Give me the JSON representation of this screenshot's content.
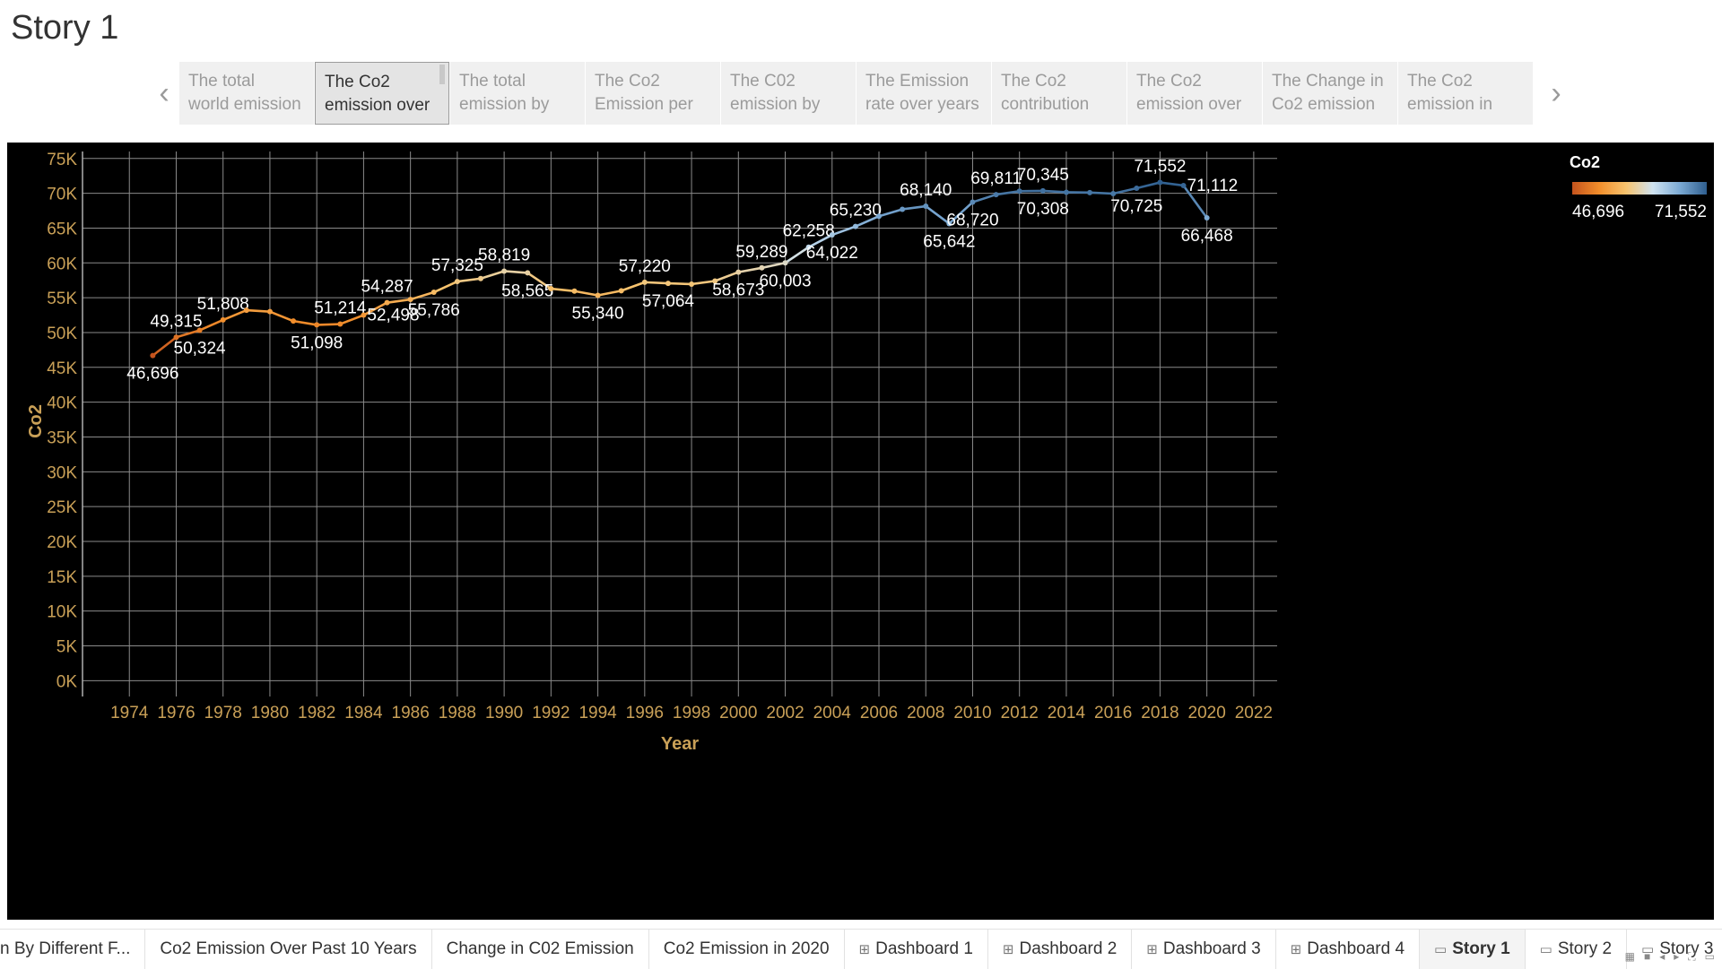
{
  "story": {
    "title": "Story 1",
    "points": [
      "The total\nworld emission",
      "The  Co2\nemission over",
      "The total\nemission by",
      "The Co2\nEmission per",
      "The C02\nemission by",
      "The Emission\nrate over years",
      "The Co2\ncontribution",
      "The Co2\nemission over",
      "The Change in\nCo2 emission",
      "The Co2\nemission in"
    ],
    "active_point": 1,
    "prev_label": "‹",
    "next_label": "›"
  },
  "legend": {
    "title": "Co2",
    "min_label": "46,696",
    "max_label": "71,552",
    "colors": [
      "#c4531d",
      "#f28e2b",
      "#f7c36e",
      "#cfe3f1",
      "#7ba9d3",
      "#2f5f8f"
    ]
  },
  "chart_data": {
    "type": "line",
    "title": "",
    "xlabel": "Year",
    "ylabel": "Co2",
    "xlim": [
      1972,
      2023
    ],
    "ylim": [
      -1500,
      76000
    ],
    "x_ticks": [
      "1974",
      "1976",
      "1978",
      "1980",
      "1982",
      "1984",
      "1986",
      "1988",
      "1990",
      "1992",
      "1994",
      "1996",
      "1998",
      "2000",
      "2002",
      "2004",
      "2006",
      "2008",
      "2010",
      "2012",
      "2014",
      "2016",
      "2018",
      "2020",
      "2022"
    ],
    "y_ticks": [
      {
        "v": 75000,
        "label": "75K"
      },
      {
        "v": 70000,
        "label": "70K"
      },
      {
        "v": 65000,
        "label": "65K"
      },
      {
        "v": 60000,
        "label": "60K"
      },
      {
        "v": 55000,
        "label": "55K"
      },
      {
        "v": 50000,
        "label": "50K"
      },
      {
        "v": 45000,
        "label": "45K"
      },
      {
        "v": 40000,
        "label": "40K"
      },
      {
        "v": 35000,
        "label": "35K"
      },
      {
        "v": 30000,
        "label": "30K"
      },
      {
        "v": 25000,
        "label": "25K"
      },
      {
        "v": 20000,
        "label": "20K"
      },
      {
        "v": 15000,
        "label": "15K"
      },
      {
        "v": 10000,
        "label": "10K"
      },
      {
        "v": 5000,
        "label": "5K"
      },
      {
        "v": 0,
        "label": "0K"
      }
    ],
    "grid": true,
    "legend_position": "top-right",
    "points": [
      {
        "x": 1975,
        "y": 46696,
        "label": "46,696",
        "pos": "below"
      },
      {
        "x": 1976,
        "y": 49315,
        "label": "49,315",
        "pos": "above"
      },
      {
        "x": 1977,
        "y": 50324,
        "label": "50,324",
        "pos": "below"
      },
      {
        "x": 1978,
        "y": 51808,
        "label": "51,808",
        "pos": "above"
      },
      {
        "x": 1979,
        "y": 53200
      },
      {
        "x": 1980,
        "y": 53000
      },
      {
        "x": 1981,
        "y": 51650
      },
      {
        "x": 1982,
        "y": 51098,
        "label": "51,098",
        "pos": "below"
      },
      {
        "x": 1983,
        "y": 51214,
        "label": "51,214",
        "pos": "above"
      },
      {
        "x": 1984,
        "y": 52498,
        "label": "52,498",
        "pos": "right"
      },
      {
        "x": 1985,
        "y": 54287,
        "label": "54,287",
        "pos": "above"
      },
      {
        "x": 1986,
        "y": 54750
      },
      {
        "x": 1987,
        "y": 55786,
        "label": "55,786",
        "pos": "below"
      },
      {
        "x": 1988,
        "y": 57325,
        "label": "57,325",
        "pos": "above"
      },
      {
        "x": 1989,
        "y": 57750
      },
      {
        "x": 1990,
        "y": 58819,
        "label": "58,819",
        "pos": "above"
      },
      {
        "x": 1991,
        "y": 58565,
        "label": "58,565",
        "pos": "below"
      },
      {
        "x": 1992,
        "y": 56300
      },
      {
        "x": 1993,
        "y": 55950
      },
      {
        "x": 1994,
        "y": 55340,
        "label": "55,340",
        "pos": "below"
      },
      {
        "x": 1995,
        "y": 56000
      },
      {
        "x": 1996,
        "y": 57220,
        "label": "57,220",
        "pos": "above"
      },
      {
        "x": 1997,
        "y": 57064,
        "label": "57,064",
        "pos": "below"
      },
      {
        "x": 1998,
        "y": 56950
      },
      {
        "x": 1999,
        "y": 57400
      },
      {
        "x": 2000,
        "y": 58673,
        "label": "58,673",
        "pos": "below"
      },
      {
        "x": 2001,
        "y": 59289,
        "label": "59,289",
        "pos": "above"
      },
      {
        "x": 2002,
        "y": 60003,
        "label": "60,003",
        "pos": "below"
      },
      {
        "x": 2003,
        "y": 62258,
        "label": "62,258",
        "pos": "above"
      },
      {
        "x": 2004,
        "y": 64022,
        "label": "64,022",
        "pos": "below"
      },
      {
        "x": 2005,
        "y": 65230,
        "label": "65,230",
        "pos": "above"
      },
      {
        "x": 2006,
        "y": 66700
      },
      {
        "x": 2007,
        "y": 67700
      },
      {
        "x": 2008,
        "y": 68140,
        "label": "68,140",
        "pos": "above"
      },
      {
        "x": 2009,
        "y": 65642,
        "label": "65,642",
        "pos": "below"
      },
      {
        "x": 2010,
        "y": 68720,
        "label": "68,720",
        "pos": "below"
      },
      {
        "x": 2011,
        "y": 69811,
        "label": "69,811",
        "pos": "above"
      },
      {
        "x": 2012,
        "y": 70300
      },
      {
        "x": 2013,
        "y": 70345,
        "label": "70,345",
        "pos": "above",
        "label2": "70,308"
      },
      {
        "x": 2014,
        "y": 70150
      },
      {
        "x": 2015,
        "y": 70100
      },
      {
        "x": 2016,
        "y": 69950
      },
      {
        "x": 2017,
        "y": 70725,
        "label": "70,725",
        "pos": "below"
      },
      {
        "x": 2018,
        "y": 71552,
        "label": "71,552",
        "pos": "above"
      },
      {
        "x": 2019,
        "y": 71112,
        "label": "71,112",
        "pos": "right"
      },
      {
        "x": 2020,
        "y": 66468,
        "label": "66,468",
        "pos": "below"
      }
    ]
  },
  "sheet_tabs": [
    {
      "label": "n By Different F...",
      "icon": "",
      "active": false
    },
    {
      "label": "Co2 Emission Over Past 10 Years",
      "icon": "",
      "active": false
    },
    {
      "label": "Change in C02 Emission",
      "icon": "",
      "active": false
    },
    {
      "label": "Co2 Emission in 2020",
      "icon": "",
      "active": false
    },
    {
      "label": "Dashboard 1",
      "icon": "⊞",
      "active": false
    },
    {
      "label": "Dashboard 2",
      "icon": "⊞",
      "active": false
    },
    {
      "label": "Dashboard 3",
      "icon": "⊞",
      "active": false
    },
    {
      "label": "Dashboard 4",
      "icon": "⊞",
      "active": false
    },
    {
      "label": "Story 1",
      "icon": "▭",
      "active": true
    },
    {
      "label": "Story 2",
      "icon": "▭",
      "active": false
    },
    {
      "label": "Story 3",
      "icon": "▭",
      "active": false
    }
  ]
}
